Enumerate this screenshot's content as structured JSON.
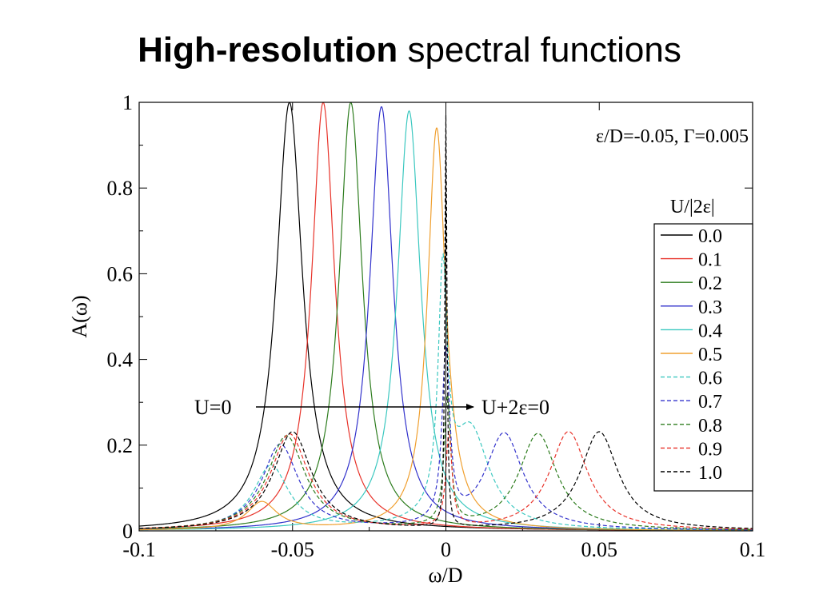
{
  "slide": {
    "title_bold": "High-resolution",
    "title_rest": " spectral functions"
  },
  "chart_data": {
    "type": "line",
    "title": "",
    "xlabel": "ω/D",
    "ylabel": "A(ω)",
    "xlim": [
      -0.1,
      0.1
    ],
    "ylim": [
      0,
      1
    ],
    "xticks": [
      -0.1,
      -0.05,
      0,
      0.05,
      0.1
    ],
    "xtick_labels": [
      "-0.1",
      "-0.05",
      "0",
      "0.05",
      "0.1"
    ],
    "yticks": [
      0,
      0.2,
      0.4,
      0.6,
      0.8,
      1
    ],
    "ytick_labels": [
      "0",
      "0.2",
      "0.4",
      "0.6",
      "0.8",
      "1"
    ],
    "grid": false,
    "parameters_label": "ε/D=-0.05, Γ=0.005",
    "legend": {
      "title": "U/|2ε|",
      "placement": "right"
    },
    "annotations": {
      "arrow_start": "U=0",
      "arrow_end": "U+2ε=0"
    },
    "series": [
      {
        "name": "0.0",
        "color": "#000000",
        "dashed": false,
        "peaks": [
          {
            "x": -0.051,
            "height": 1.0,
            "width": 0.0052
          }
        ]
      },
      {
        "name": "0.1",
        "color": "#e8332a",
        "dashed": false,
        "peaks": [
          {
            "x": -0.04,
            "height": 1.0,
            "width": 0.0046
          }
        ]
      },
      {
        "name": "0.2",
        "color": "#2e7d1f",
        "dashed": false,
        "peaks": [
          {
            "x": -0.031,
            "height": 1.0,
            "width": 0.0046
          }
        ]
      },
      {
        "name": "0.3",
        "color": "#3333cc",
        "dashed": false,
        "peaks": [
          {
            "x": -0.021,
            "height": 0.99,
            "width": 0.0046
          }
        ]
      },
      {
        "name": "0.4",
        "color": "#3cc8c0",
        "dashed": false,
        "peaks": [
          {
            "x": -0.012,
            "height": 0.98,
            "width": 0.0046
          }
        ]
      },
      {
        "name": "0.5",
        "color": "#f0a030",
        "dashed": false,
        "peaks": [
          {
            "x": -0.003,
            "height": 0.94,
            "width": 0.0036
          },
          {
            "x": -0.06,
            "height": 0.065,
            "width": 0.006
          }
        ]
      },
      {
        "name": "0.6",
        "color": "#3cc8c0",
        "dashed": true,
        "peaks": [
          {
            "x": -0.001,
            "height": 0.55,
            "width": 0.0018
          },
          {
            "x": 0.008,
            "height": 0.23,
            "width": 0.0075
          },
          {
            "x": -0.057,
            "height": 0.15,
            "width": 0.007
          }
        ]
      },
      {
        "name": "0.7",
        "color": "#3333cc",
        "dashed": true,
        "peaks": [
          {
            "x": 0.0,
            "height": 0.4,
            "width": 0.0015
          },
          {
            "x": 0.019,
            "height": 0.225,
            "width": 0.0075
          },
          {
            "x": -0.054,
            "height": 0.2,
            "width": 0.0072
          }
        ]
      },
      {
        "name": "0.8",
        "color": "#2e7d1f",
        "dashed": true,
        "peaks": [
          {
            "x": 0.0005,
            "height": 0.3,
            "width": 0.0013
          },
          {
            "x": 0.03,
            "height": 0.225,
            "width": 0.0075
          },
          {
            "x": -0.052,
            "height": 0.22,
            "width": 0.0075
          }
        ]
      },
      {
        "name": "0.9",
        "color": "#e8332a",
        "dashed": true,
        "peaks": [
          {
            "x": 0.001,
            "height": 0.22,
            "width": 0.0012
          },
          {
            "x": 0.04,
            "height": 0.23,
            "width": 0.0075
          },
          {
            "x": -0.051,
            "height": 0.225,
            "width": 0.0075
          }
        ]
      },
      {
        "name": "1.0",
        "color": "#000000",
        "dashed": true,
        "peaks": [
          {
            "x": 0.0,
            "height": 0.96,
            "width": 0.0004
          },
          {
            "x": 0.05,
            "height": 0.23,
            "width": 0.0075
          },
          {
            "x": -0.05,
            "height": 0.23,
            "width": 0.0075
          }
        ]
      }
    ]
  }
}
